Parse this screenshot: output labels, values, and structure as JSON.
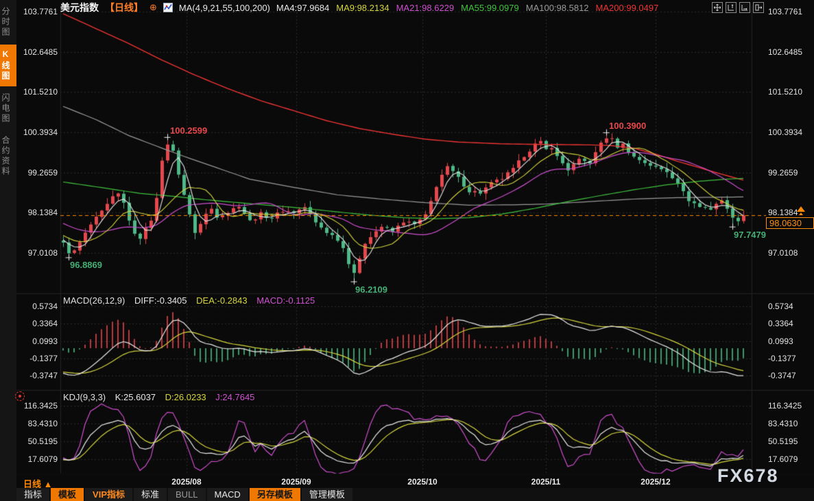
{
  "header": {
    "symbol": "美元指数",
    "period_tag": "【日线】",
    "plus": "⊕",
    "ma_settings": "MA(4,9,21,55,100,200)",
    "ma_items": [
      {
        "label": "MA4:97.9684",
        "color": "#e8e8e8"
      },
      {
        "label": "MA9:98.2134",
        "color": "#d6d63e"
      },
      {
        "label": "MA21:98.6229",
        "color": "#cf4fcf"
      },
      {
        "label": "MA55:99.0979",
        "color": "#3fc43f"
      },
      {
        "label": "MA100:98.5812",
        "color": "#9a9a9a"
      },
      {
        "label": "MA200:99.0497",
        "color": "#ef3434"
      }
    ]
  },
  "sidebar": {
    "items": [
      {
        "name": "time-chart",
        "label": "分时图",
        "active": false
      },
      {
        "name": "kline-chart",
        "label": "K线图",
        "active": true
      },
      {
        "name": "lightning-chart",
        "label": "闪电图",
        "active": false
      },
      {
        "name": "contract-info",
        "label": "合约资料",
        "active": false
      }
    ]
  },
  "macd_header": {
    "title": "MACD(26,12,9)",
    "diff": "DIFF:-0.3405",
    "dea": "DEA:-0.2843",
    "macd": "MACD:-0.1125",
    "diff_color": "#e8e8e8",
    "dea_color": "#d6d63e",
    "macd_color": "#d052d0"
  },
  "kdj_header": {
    "title": "KDJ(9,3,3)",
    "k": "K:25.6037",
    "d": "D:26.0233",
    "j": "J:24.7645",
    "k_color": "#e8e8e8",
    "d_color": "#d6d63e",
    "j_color": "#d052d0"
  },
  "bottom": {
    "period": "日线",
    "period_arrow": "▲",
    "watermark": "FX678",
    "tabs": [
      {
        "label": "指标",
        "style": "plain"
      },
      {
        "label": "模板",
        "style": "orange"
      },
      {
        "label": "VIP指标",
        "style": "orange-text"
      },
      {
        "label": "标准",
        "style": "plain"
      },
      {
        "label": "BULL",
        "style": "dim"
      },
      {
        "label": "MACD",
        "style": "plain"
      },
      {
        "label": "另存模板",
        "style": "orange"
      },
      {
        "label": "管理模板",
        "style": "plain"
      }
    ]
  },
  "price_box": {
    "value": "98.0630"
  },
  "chart_data": {
    "type": "candlestick",
    "title": "美元指数 日线 (US Dollar Index, daily)",
    "panels": {
      "main": {
        "axis_labels": [
          "103.7761",
          "102.6485",
          "101.5210",
          "100.3934",
          "99.2659",
          "98.1384",
          "97.0108"
        ]
      },
      "macd": {
        "axis_labels": [
          "0.5734",
          "0.3364",
          "0.0993",
          "-0.1377",
          "-0.3747"
        ]
      },
      "kdj": {
        "axis_labels": [
          "116.3425",
          "83.4310",
          "50.5195",
          "17.6079"
        ]
      }
    },
    "x_months": [
      {
        "label": "2025/08",
        "day": 22.5
      },
      {
        "label": "2025/09",
        "day": 42.5
      },
      {
        "label": "2025/10",
        "day": 65.5
      },
      {
        "label": "2025/11",
        "day": 88
      },
      {
        "label": "2025/12",
        "day": 108
      }
    ],
    "last_price": 98.063,
    "noise": 0.11,
    "pinned_days": [
      0,
      1,
      19,
      53,
      99,
      122,
      123,
      124
    ],
    "history_keyframes": [
      [
        -40,
        99.3
      ],
      [
        -30,
        98.9
      ],
      [
        -20,
        98.45
      ],
      [
        -10,
        97.8
      ],
      [
        -1,
        97.35
      ]
    ],
    "close_keyframes": [
      [
        0,
        97.3
      ],
      [
        1,
        97.0
      ],
      [
        2,
        97.05
      ],
      [
        3,
        97.3
      ],
      [
        4,
        97.55
      ],
      [
        5,
        97.8
      ],
      [
        7,
        98.15
      ],
      [
        9,
        98.55
      ],
      [
        10,
        98.65
      ],
      [
        11,
        98.4
      ],
      [
        12,
        97.95
      ],
      [
        13,
        97.5
      ],
      [
        14,
        97.45
      ],
      [
        15,
        97.68
      ],
      [
        16,
        97.95
      ],
      [
        17,
        98.6
      ],
      [
        18,
        99.55
      ],
      [
        19,
        100.05
      ],
      [
        20,
        99.85
      ],
      [
        21,
        99.25
      ],
      [
        22,
        98.65
      ],
      [
        23,
        98.05
      ],
      [
        24,
        97.6
      ],
      [
        25,
        97.82
      ],
      [
        26,
        98.1
      ],
      [
        27,
        98.25
      ],
      [
        28,
        98.05
      ],
      [
        30,
        98.15
      ],
      [
        32,
        98.35
      ],
      [
        34,
        97.9
      ],
      [
        36,
        98.1
      ],
      [
        38,
        98.0
      ],
      [
        40,
        98.2
      ],
      [
        42,
        98.15
      ],
      [
        44,
        98.3
      ],
      [
        46,
        97.85
      ],
      [
        48,
        97.6
      ],
      [
        50,
        97.4
      ],
      [
        51,
        97.15
      ],
      [
        52,
        96.75
      ],
      [
        53,
        96.45
      ],
      [
        54,
        96.8
      ],
      [
        55,
        97.3
      ],
      [
        56,
        97.5
      ],
      [
        58,
        97.75
      ],
      [
        60,
        97.6
      ],
      [
        62,
        97.9
      ],
      [
        64,
        97.8
      ],
      [
        66,
        98.05
      ],
      [
        67,
        98.45
      ],
      [
        68,
        98.9
      ],
      [
        69,
        99.2
      ],
      [
        70,
        99.4
      ],
      [
        71,
        99.28
      ],
      [
        72,
        99.1
      ],
      [
        74,
        98.75
      ],
      [
        76,
        98.7
      ],
      [
        78,
        98.95
      ],
      [
        80,
        99.1
      ],
      [
        82,
        99.35
      ],
      [
        84,
        99.75
      ],
      [
        86,
        100.05
      ],
      [
        87,
        100.1
      ],
      [
        88,
        99.9
      ],
      [
        89,
        100.0
      ],
      [
        90,
        99.7
      ],
      [
        92,
        99.35
      ],
      [
        94,
        99.6
      ],
      [
        96,
        99.55
      ],
      [
        97,
        99.8
      ],
      [
        98,
        100.1
      ],
      [
        99,
        100.22
      ],
      [
        100,
        100.18
      ],
      [
        101,
        100.0
      ],
      [
        102,
        100.05
      ],
      [
        104,
        99.7
      ],
      [
        106,
        99.55
      ],
      [
        108,
        99.4
      ],
      [
        110,
        99.3
      ],
      [
        112,
        99.0
      ],
      [
        113,
        98.7
      ],
      [
        114,
        98.5
      ],
      [
        116,
        98.3
      ],
      [
        118,
        98.25
      ],
      [
        119,
        98.4
      ],
      [
        120,
        98.45
      ],
      [
        121,
        98.3
      ],
      [
        122,
        98.0
      ],
      [
        123,
        97.9
      ],
      [
        124,
        98.063
      ]
    ],
    "overrides": {
      "1": {
        "low": 96.8869
      },
      "19": {
        "high": 100.2599
      },
      "53": {
        "low": 96.2109
      },
      "99": {
        "high": 100.39
      },
      "122": {
        "low": 97.7479
      },
      "124": {
        "close": 98.063
      }
    },
    "annotations": [
      {
        "text": "100.2599",
        "day": 19,
        "value": 100.2599,
        "kind": "high"
      },
      {
        "text": "96.8869",
        "day": 1,
        "value": 96.8869,
        "kind": "low"
      },
      {
        "text": "96.2109",
        "day": 53,
        "value": 96.2109,
        "kind": "low"
      },
      {
        "text": "100.3900",
        "day": 99,
        "value": 100.39,
        "kind": "high"
      },
      {
        "text": "97.7479",
        "day": 122,
        "value": 97.7479,
        "kind": "low"
      }
    ],
    "ma_anchors": {
      "ma55": [
        [
          0,
          99.0
        ],
        [
          8,
          98.82
        ],
        [
          14,
          98.68
        ],
        [
          20,
          98.6
        ],
        [
          26,
          98.5
        ],
        [
          32,
          98.42
        ],
        [
          38,
          98.34
        ],
        [
          44,
          98.26
        ],
        [
          50,
          98.16
        ],
        [
          56,
          98.07
        ],
        [
          62,
          98.0
        ],
        [
          68,
          97.97
        ],
        [
          74,
          98.0
        ],
        [
          80,
          98.1
        ],
        [
          86,
          98.26
        ],
        [
          92,
          98.45
        ],
        [
          98,
          98.62
        ],
        [
          104,
          98.78
        ],
        [
          110,
          98.92
        ],
        [
          116,
          99.02
        ],
        [
          121,
          99.08
        ],
        [
          124,
          99.1
        ]
      ],
      "ma100": [
        [
          0,
          101.12
        ],
        [
          6,
          100.75
        ],
        [
          12,
          100.3
        ],
        [
          18,
          99.95
        ],
        [
          22,
          99.72
        ],
        [
          28,
          99.4
        ],
        [
          34,
          99.08
        ],
        [
          42,
          98.85
        ],
        [
          50,
          98.64
        ],
        [
          58,
          98.52
        ],
        [
          66,
          98.42
        ],
        [
          74,
          98.35
        ],
        [
          82,
          98.36
        ],
        [
          88,
          98.38
        ],
        [
          96,
          98.45
        ],
        [
          104,
          98.52
        ],
        [
          112,
          98.56
        ],
        [
          124,
          98.58
        ]
      ],
      "ma200": [
        [
          0,
          103.72
        ],
        [
          6,
          103.3
        ],
        [
          12,
          102.88
        ],
        [
          18,
          102.42
        ],
        [
          24,
          102.0
        ],
        [
          30,
          101.62
        ],
        [
          36,
          101.28
        ],
        [
          42,
          101.0
        ],
        [
          48,
          100.72
        ],
        [
          54,
          100.5
        ],
        [
          60,
          100.34
        ],
        [
          66,
          100.2
        ],
        [
          72,
          100.12
        ],
        [
          80,
          100.07
        ],
        [
          88,
          100.05
        ],
        [
          96,
          100.04
        ],
        [
          100,
          100.02
        ],
        [
          104,
          99.95
        ],
        [
          108,
          99.78
        ],
        [
          112,
          99.58
        ],
        [
          116,
          99.4
        ],
        [
          120,
          99.22
        ],
        [
          124,
          99.05
        ]
      ]
    },
    "colors": {
      "up": "#e2484e",
      "down": "#4fb886",
      "annotation_high": "#e84749",
      "annotation_low": "#45b075",
      "ma4": "#e8e8e8",
      "ma9": "#d6d63e",
      "ma21": "#cf4fcf",
      "ma55": "#3fc43f",
      "ma100": "#9a9a9a",
      "ma200": "#ef3434",
      "diff": "#e8e8e8",
      "dea": "#d6d63e",
      "macd_bar_up": "#e2484e",
      "macd_bar_down": "#4fb886",
      "k": "#e8e8e8",
      "d": "#d6d63e",
      "j": "#cf4fcf",
      "grid": "#2d2d2d",
      "last_price": "#ff8a00",
      "cross": "#f0f0f0"
    }
  }
}
